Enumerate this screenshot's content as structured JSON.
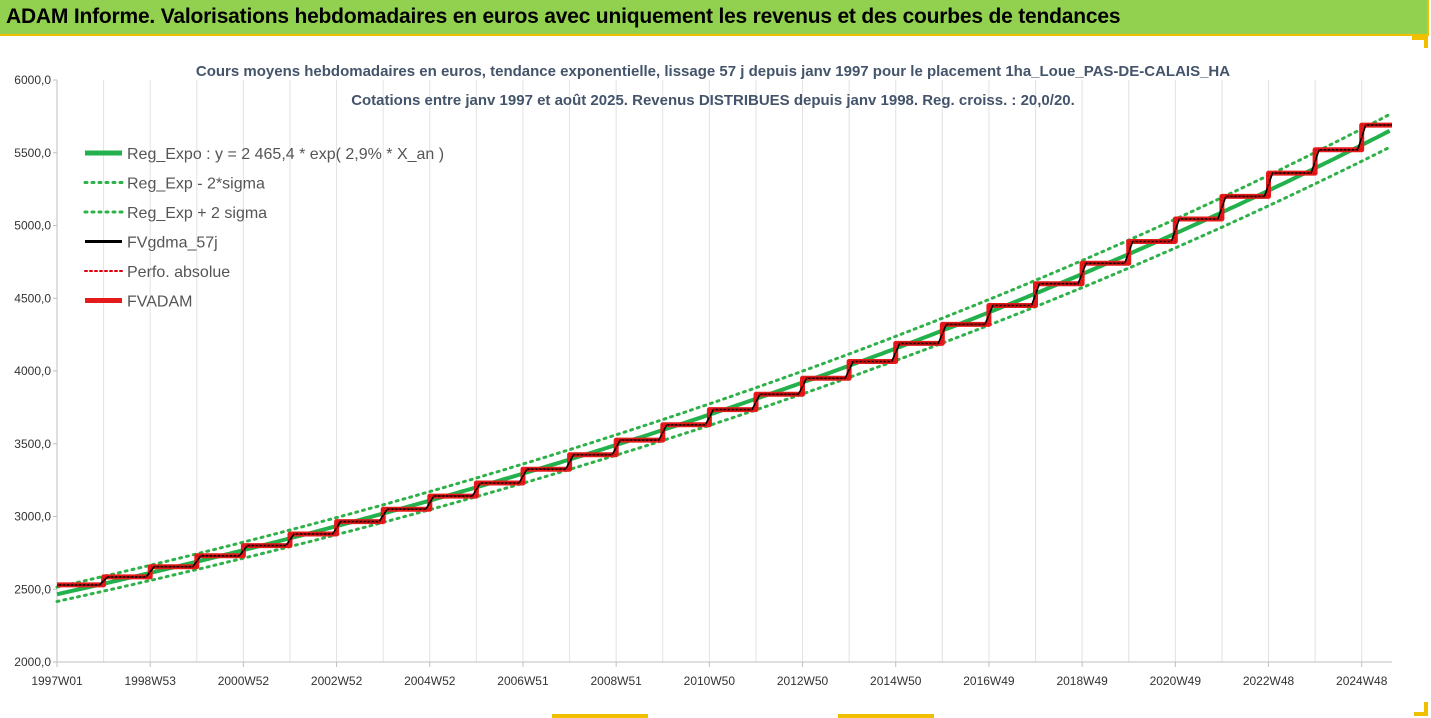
{
  "header": {
    "title": "ADAM Informe. Valorisations hebdomadaires en euros avec uniquement les revenus et des courbes de tendances"
  },
  "colors": {
    "banner": "#92d050",
    "trend": "#22b14c",
    "band": "#2fb14a",
    "fvgdma": "#000000",
    "perfo": "#e0000a",
    "fvadam": "#e51b1b"
  },
  "chart_data": {
    "type": "line",
    "title": "Cours moyens hebdomadaires en euros, tendance exponentielle, lissage 57 j depuis janv 1997 pour le placement 1ha_Loue_PAS-DE-CALAIS_HA",
    "subtitle": "Cotations entre janv 1997 et août 2025. Revenus DISTRIBUES depuis janv 1998. Reg. croiss. : 20,0/20.",
    "ylim": [
      2000,
      6000
    ],
    "yticks": [
      "2000,0",
      "2500,0",
      "3000,0",
      "3500,0",
      "4000,0",
      "4500,0",
      "5000,0",
      "5500,0",
      "6000,0"
    ],
    "xlim": [
      1997.0,
      2025.65
    ],
    "xticks": [
      {
        "label": "1997W01",
        "x": 1997.0
      },
      {
        "label": "1998W53",
        "x": 1999.0
      },
      {
        "label": "2000W52",
        "x": 2001.0
      },
      {
        "label": "2002W52",
        "x": 2003.0
      },
      {
        "label": "2004W52",
        "x": 2005.0
      },
      {
        "label": "2006W51",
        "x": 2007.0
      },
      {
        "label": "2008W51",
        "x": 2009.0
      },
      {
        "label": "2010W50",
        "x": 2011.0
      },
      {
        "label": "2012W50",
        "x": 2013.0
      },
      {
        "label": "2014W50",
        "x": 2015.0
      },
      {
        "label": "2016W49",
        "x": 2017.0
      },
      {
        "label": "2018W49",
        "x": 2019.0
      },
      {
        "label": "2020W49",
        "x": 2021.0
      },
      {
        "label": "2022W48",
        "x": 2023.0
      },
      {
        "label": "2024W48",
        "x": 2025.0
      }
    ],
    "grid": "vertical",
    "legend_position": "top-left",
    "legend": [
      {
        "name": "Reg_Expo : y = 2 465,4 * exp( 2,9% *  X_an )",
        "style": "solid-thick",
        "color": "#22b14c"
      },
      {
        "name": "Reg_Exp - 2*sigma",
        "style": "dotted",
        "color": "#2fb14a"
      },
      {
        "name": "Reg_Exp + 2 sigma",
        "style": "dotted",
        "color": "#2fb14a"
      },
      {
        "name": "FVgdma_57j",
        "style": "solid",
        "color": "#000000"
      },
      {
        "name": "Perfo. absolue",
        "style": "dotted-thin",
        "color": "#e0000a"
      },
      {
        "name": "FVADAM",
        "style": "solid-thick",
        "color": "#e51b1b"
      }
    ],
    "trend": {
      "a": 2465.4,
      "rate": 0.029,
      "x0": 1997.0
    },
    "sigma_band": 0.02,
    "fvadam_steps": [
      {
        "x": 1997.0,
        "y": 2530
      },
      {
        "x": 1998.0,
        "y": 2585
      },
      {
        "x": 1999.0,
        "y": 2655
      },
      {
        "x": 2000.0,
        "y": 2730
      },
      {
        "x": 2001.0,
        "y": 2800
      },
      {
        "x": 2002.0,
        "y": 2880
      },
      {
        "x": 2003.0,
        "y": 2965
      },
      {
        "x": 2004.0,
        "y": 3050
      },
      {
        "x": 2005.0,
        "y": 3140
      },
      {
        "x": 2006.0,
        "y": 3230
      },
      {
        "x": 2007.0,
        "y": 3325
      },
      {
        "x": 2008.0,
        "y": 3425
      },
      {
        "x": 2009.0,
        "y": 3525
      },
      {
        "x": 2010.0,
        "y": 3630
      },
      {
        "x": 2011.0,
        "y": 3735
      },
      {
        "x": 2012.0,
        "y": 3840
      },
      {
        "x": 2013.0,
        "y": 3950
      },
      {
        "x": 2014.0,
        "y": 4065
      },
      {
        "x": 2015.0,
        "y": 4190
      },
      {
        "x": 2016.0,
        "y": 4320
      },
      {
        "x": 2017.0,
        "y": 4450
      },
      {
        "x": 2018.0,
        "y": 4600
      },
      {
        "x": 2019.0,
        "y": 4740
      },
      {
        "x": 2020.0,
        "y": 4890
      },
      {
        "x": 2021.0,
        "y": 5045
      },
      {
        "x": 2022.0,
        "y": 5200
      },
      {
        "x": 2023.0,
        "y": 5360
      },
      {
        "x": 2024.0,
        "y": 5520
      },
      {
        "x": 2025.0,
        "y": 5690
      }
    ],
    "end_x": 2025.65
  }
}
